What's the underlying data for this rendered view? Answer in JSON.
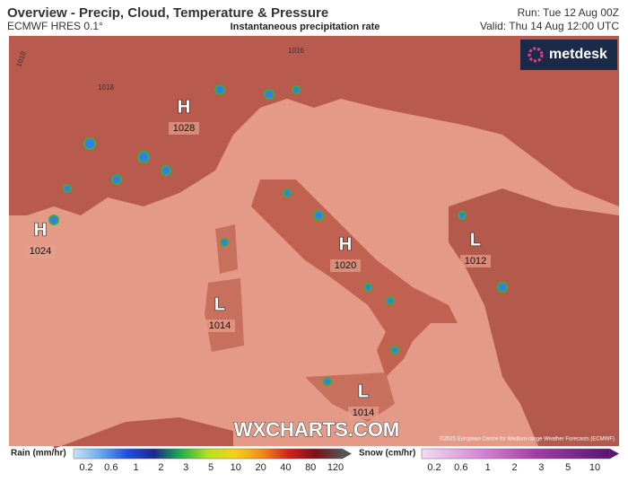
{
  "header": {
    "title": "Overview - Precip, Cloud, Temperature & Pressure",
    "model": "ECMWF HRES 0.1°",
    "subtitle": "Instantaneous precipitation rate",
    "run": "Run: Tue 12 Aug 00Z",
    "valid": "Valid: Thu 14 Aug 12:00 UTC"
  },
  "map": {
    "logo": "metdesk",
    "watermark": "WXCHARTS.COM",
    "copyright": "©2025 European Centre for Medium-range Weather Forecasts (ECMWF)",
    "isobar_labels": [
      "1018",
      "1018",
      "1016"
    ],
    "pressure_centers": [
      {
        "type": "H",
        "value": "1028"
      },
      {
        "type": "H",
        "value": "1024"
      },
      {
        "type": "H",
        "value": "1020"
      },
      {
        "type": "L",
        "value": "1014"
      },
      {
        "type": "L",
        "value": "1012"
      },
      {
        "type": "L",
        "value": "1014"
      }
    ]
  },
  "legend": {
    "rain": {
      "title": "Rain (mm/hr)",
      "ticks": [
        "0.2",
        "0.6",
        "1",
        "2",
        "3",
        "5",
        "10",
        "20",
        "40",
        "80",
        "120"
      ]
    },
    "snow": {
      "title": "Snow (cm/hr)",
      "ticks": [
        "0.2",
        "0.6",
        "1",
        "2",
        "3",
        "5",
        "10"
      ]
    }
  }
}
